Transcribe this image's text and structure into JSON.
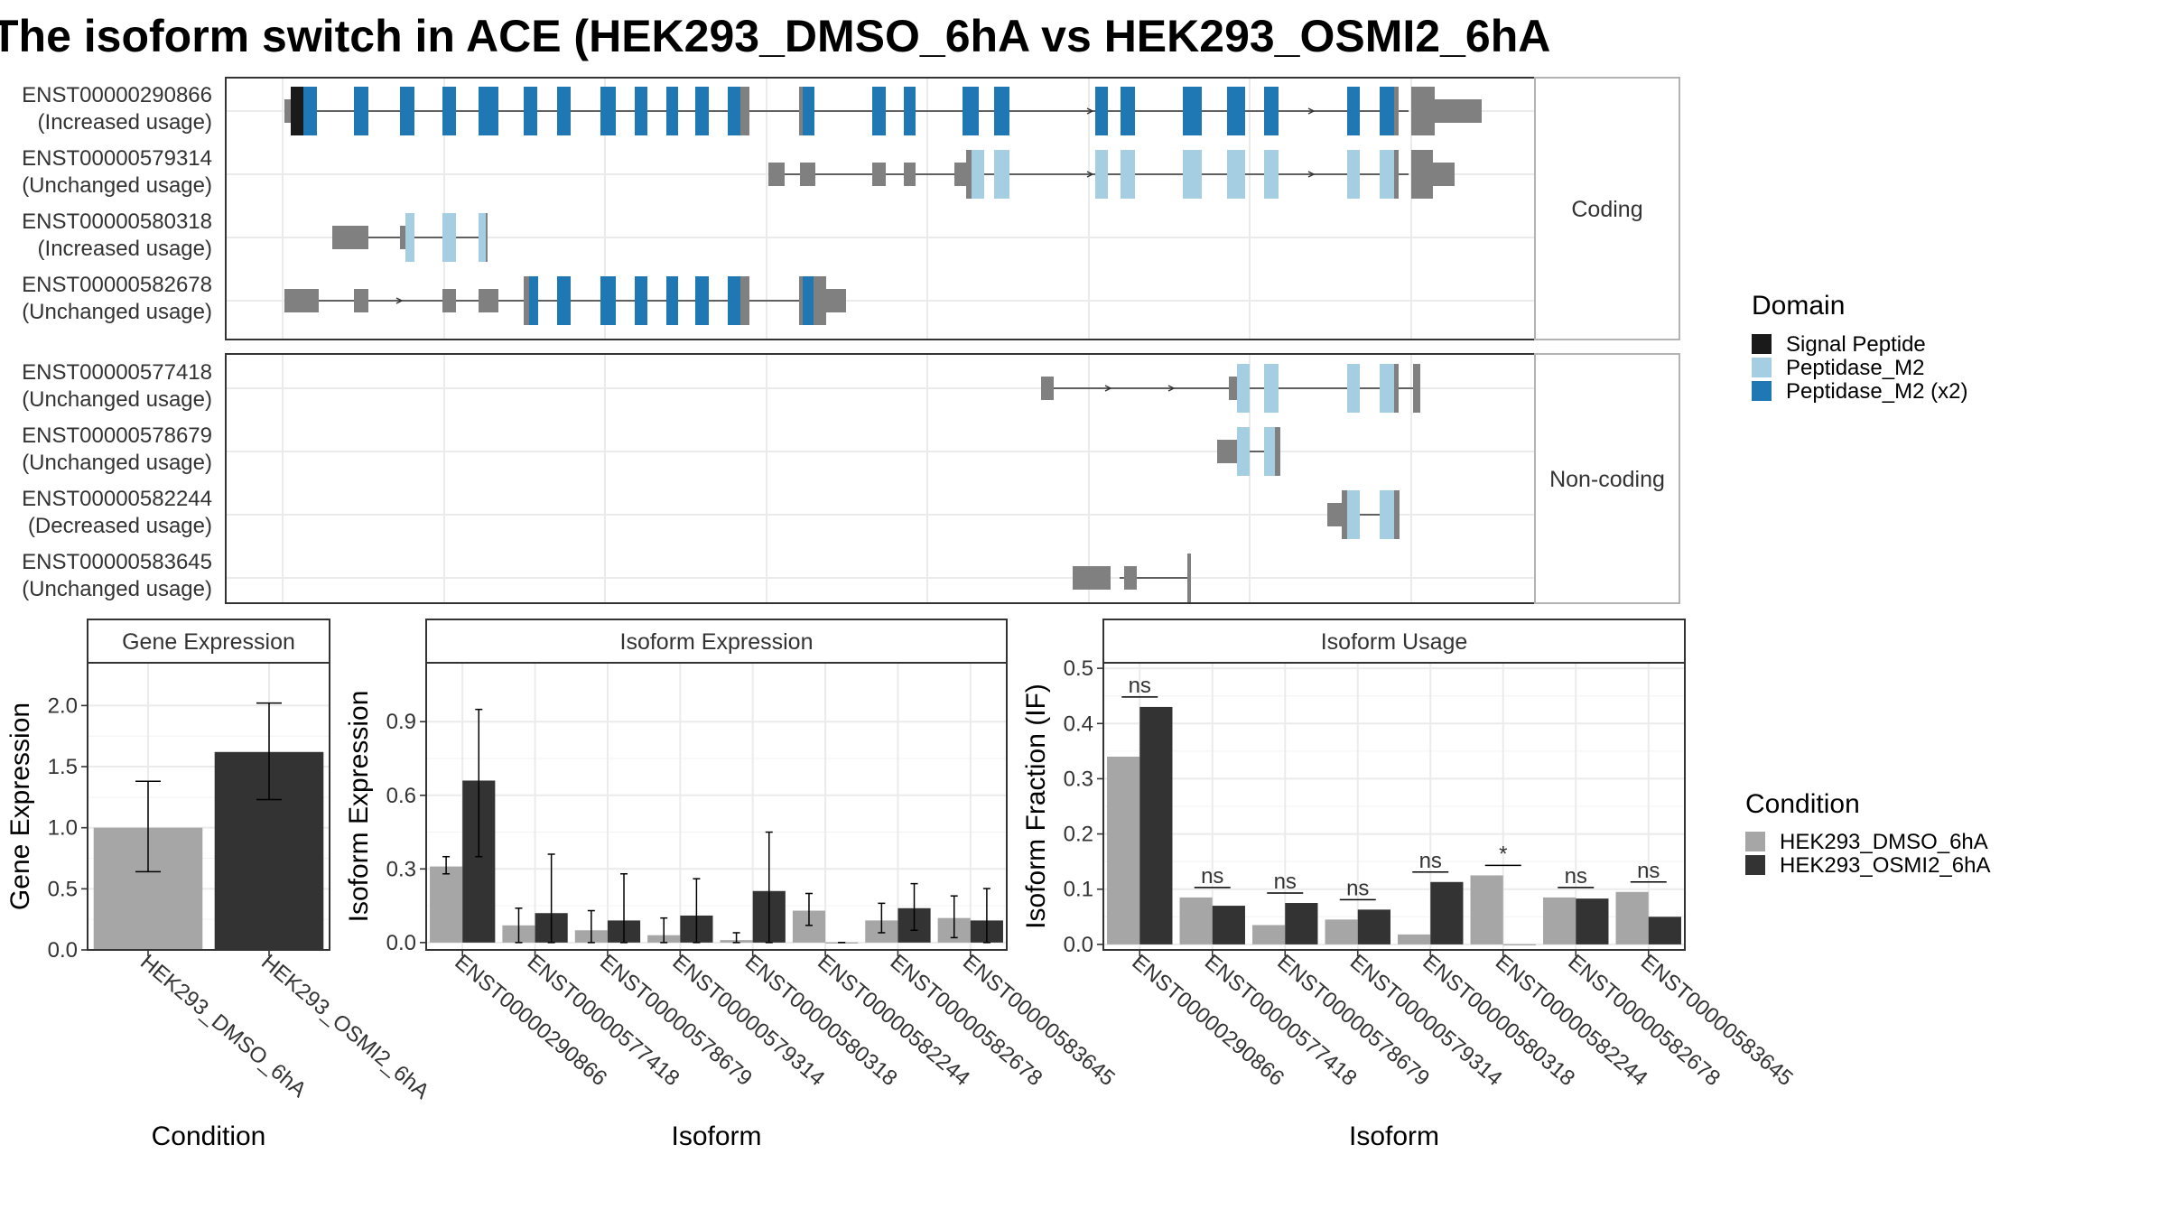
{
  "title": "The isoform switch in ACE (HEK293_DMSO_6hA vs HEK293_OSMI2_6hA",
  "colors": {
    "signal_peptide": "#1a1a1a",
    "peptidase_m2": "#a6cee3",
    "peptidase_m2_x2": "#1f78b4",
    "utr": "#808080",
    "dmso": "#a6a6a6",
    "osmi2": "#333333",
    "panel_border": "#333333",
    "strip_bg": "#ffffff",
    "grid": "#ebebeb"
  },
  "structure": {
    "facets": [
      "Coding",
      "Non-coding"
    ],
    "coding": [
      {
        "id": "ENST00000290866",
        "usage": "(Increased usage)"
      },
      {
        "id": "ENST00000579314",
        "usage": "(Unchanged usage)"
      },
      {
        "id": "ENST00000580318",
        "usage": "(Increased usage)"
      },
      {
        "id": "ENST00000582678",
        "usage": "(Unchanged usage)"
      }
    ],
    "noncoding": [
      {
        "id": "ENST00000577418",
        "usage": "(Unchanged usage)"
      },
      {
        "id": "ENST00000578679",
        "usage": "(Unchanged usage)"
      },
      {
        "id": "ENST00000582244",
        "usage": "(Decreased usage)"
      },
      {
        "id": "ENST00000583645",
        "usage": "(Unchanged usage)"
      }
    ]
  },
  "legend_domain": {
    "title": "Domain",
    "items": [
      {
        "label": "Signal Peptide",
        "color": "#1a1a1a"
      },
      {
        "label": "Peptidase_M2",
        "color": "#a6cee3"
      },
      {
        "label": "Peptidase_M2 (x2)",
        "color": "#1f78b4"
      }
    ]
  },
  "legend_condition": {
    "title": "Condition",
    "items": [
      {
        "label": "HEK293_DMSO_6hA",
        "color": "#a6a6a6"
      },
      {
        "label": "HEK293_OSMI2_6hA",
        "color": "#333333"
      }
    ]
  },
  "chart_data": [
    {
      "type": "bar",
      "strip": "Gene Expression",
      "xlabel": "Condition",
      "ylabel": "Gene Expression",
      "categories": [
        "HEK293_DMSO_6hA",
        "HEK293_OSMI2_6hA"
      ],
      "values": [
        1.0,
        1.62
      ],
      "err_low": [
        0.64,
        1.23
      ],
      "err_high": [
        1.38,
        2.02
      ],
      "ylim": [
        0,
        2.35
      ],
      "yticks": [
        0.0,
        0.5,
        1.0,
        1.5,
        2.0
      ],
      "ytick_labels": [
        "0.0",
        "0.5",
        "1.0",
        "1.5",
        "2.0"
      ]
    },
    {
      "type": "bar",
      "strip": "Isoform Expression",
      "xlabel": "Isoform",
      "ylabel": "Isoform Expression",
      "categories": [
        "ENST00000290866",
        "ENST00000577418",
        "ENST00000578679",
        "ENST00000579314",
        "ENST00000580318",
        "ENST00000582244",
        "ENST00000582678",
        "ENST00000583645"
      ],
      "series": [
        {
          "name": "HEK293_DMSO_6hA",
          "values": [
            0.31,
            0.07,
            0.05,
            0.03,
            0.01,
            0.13,
            0.09,
            0.1
          ],
          "err_low": [
            0.28,
            0.0,
            0.0,
            0.0,
            0.0,
            0.07,
            0.04,
            0.02
          ],
          "err_high": [
            0.35,
            0.14,
            0.13,
            0.1,
            0.04,
            0.2,
            0.16,
            0.19
          ]
        },
        {
          "name": "HEK293_OSMI2_6hA",
          "values": [
            0.66,
            0.12,
            0.09,
            0.11,
            0.21,
            0.0,
            0.14,
            0.09
          ],
          "err_low": [
            0.35,
            0.0,
            0.0,
            0.0,
            0.0,
            0.0,
            0.05,
            0.0
          ],
          "err_high": [
            0.95,
            0.36,
            0.28,
            0.26,
            0.45,
            0.0,
            0.24,
            0.22
          ]
        }
      ],
      "ylim": [
        -0.03,
        1.14
      ],
      "yticks": [
        0.0,
        0.3,
        0.6,
        0.9
      ],
      "ytick_labels": [
        "0.0",
        "0.3",
        "0.6",
        "0.9"
      ]
    },
    {
      "type": "bar",
      "strip": "Isoform Usage",
      "xlabel": "Isoform",
      "ylabel": "Isoform Fraction (IF)",
      "categories": [
        "ENST00000290866",
        "ENST00000577418",
        "ENST00000578679",
        "ENST00000579314",
        "ENST00000580318",
        "ENST00000582244",
        "ENST00000582678",
        "ENST00000583645"
      ],
      "series": [
        {
          "name": "HEK293_DMSO_6hA",
          "values": [
            0.34,
            0.085,
            0.035,
            0.045,
            0.018,
            0.125,
            0.085,
            0.095
          ]
        },
        {
          "name": "HEK293_OSMI2_6hA",
          "values": [
            0.43,
            0.07,
            0.075,
            0.063,
            0.113,
            0.0,
            0.083,
            0.05
          ]
        }
      ],
      "significance": [
        "ns",
        "ns",
        "ns",
        "ns",
        "ns",
        "*",
        "ns",
        "ns"
      ],
      "ylim": [
        -0.01,
        0.51
      ],
      "yticks": [
        0.0,
        0.1,
        0.2,
        0.3,
        0.4,
        0.5
      ],
      "ytick_labels": [
        "0.0",
        "0.1",
        "0.2",
        "0.3",
        "0.4",
        "0.5"
      ]
    }
  ]
}
